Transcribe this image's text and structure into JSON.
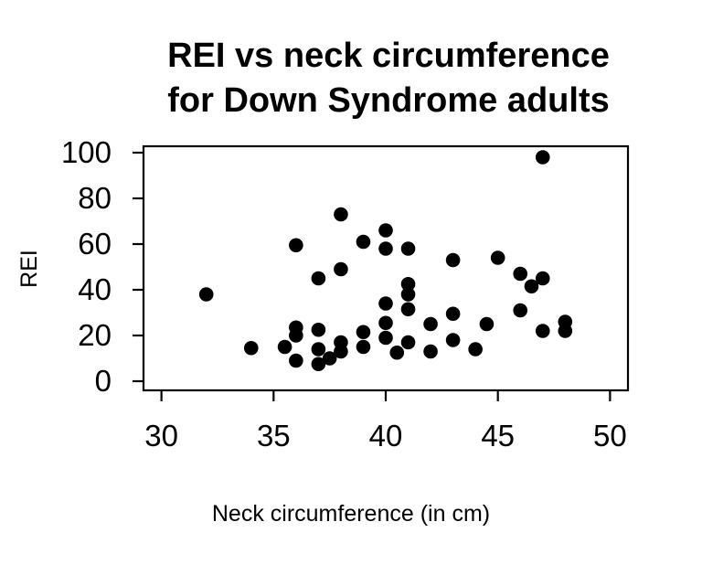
{
  "title": {
    "line1": "REI vs neck circumference",
    "line2": "for Down Syndrome adults"
  },
  "colors": {
    "background": "#ffffff",
    "point": "#000000",
    "axis": "#000000",
    "text": "#000000"
  },
  "chart_data": {
    "type": "scatter",
    "title": "REI vs neck circumference for Down Syndrome adults",
    "xlabel": "Neck circumference (in cm)",
    "ylabel": "REI",
    "x_ticks": [
      30,
      35,
      40,
      45,
      50
    ],
    "y_ticks": [
      0,
      20,
      40,
      60,
      80,
      100
    ],
    "xlim": [
      29.2,
      50.8
    ],
    "ylim": [
      -4,
      102.8
    ],
    "grid": false,
    "legend_position": "none",
    "marker": "filled-circle",
    "points": [
      [
        32,
        38
      ],
      [
        34,
        14.5
      ],
      [
        35.5,
        15
      ],
      [
        36,
        59.5
      ],
      [
        36,
        23.5
      ],
      [
        36,
        20
      ],
      [
        36,
        9
      ],
      [
        37,
        45
      ],
      [
        37,
        22.5
      ],
      [
        37,
        14
      ],
      [
        37,
        7.5
      ],
      [
        37.5,
        10
      ],
      [
        38,
        73
      ],
      [
        38,
        49
      ],
      [
        38,
        17
      ],
      [
        38,
        13
      ],
      [
        39,
        61
      ],
      [
        39,
        21.5
      ],
      [
        39,
        15
      ],
      [
        40,
        66
      ],
      [
        40,
        58
      ],
      [
        40,
        34
      ],
      [
        40,
        25.5
      ],
      [
        40,
        19
      ],
      [
        40.5,
        12.5
      ],
      [
        41,
        58
      ],
      [
        41,
        42.5
      ],
      [
        41,
        38
      ],
      [
        41,
        31.5
      ],
      [
        41,
        17
      ],
      [
        42,
        25
      ],
      [
        42,
        13
      ],
      [
        43,
        53
      ],
      [
        43,
        29.5
      ],
      [
        43,
        18
      ],
      [
        44,
        14
      ],
      [
        44.5,
        25
      ],
      [
        45,
        54
      ],
      [
        46,
        47
      ],
      [
        46,
        31
      ],
      [
        46.5,
        41.5
      ],
      [
        47,
        98
      ],
      [
        47,
        45
      ],
      [
        47,
        22
      ],
      [
        48,
        26
      ],
      [
        48,
        22
      ]
    ]
  }
}
